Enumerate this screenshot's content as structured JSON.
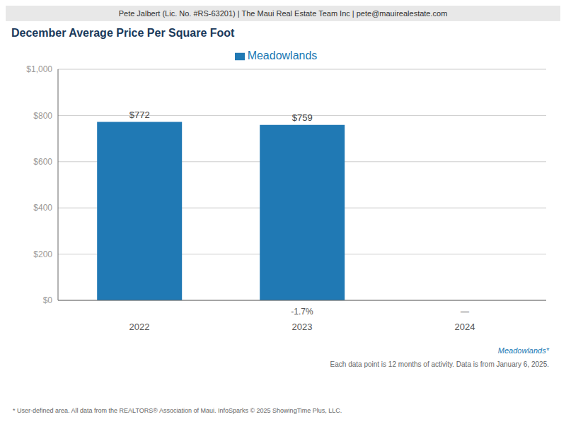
{
  "chart_data": {
    "type": "bar",
    "title": "December Average Price Per Square Foot",
    "header": "Pete Jalbert (Lic. No. #RS-63201) | The Maui Real Estate Team Inc | pete@mauirealestate.com",
    "categories": [
      "2022",
      "2023",
      "2024"
    ],
    "series": [
      {
        "name": "Meadowlands",
        "color": "#2079b4",
        "values": [
          772,
          759,
          0
        ],
        "value_labels": [
          "$772",
          "$759",
          null
        ]
      }
    ],
    "data_labels": true,
    "annotations": [
      null,
      "-1.7%",
      "—"
    ],
    "ylim": [
      0,
      1000
    ],
    "yticks": [
      {
        "value": 0,
        "label": "$0"
      },
      {
        "value": 200,
        "label": "$200"
      },
      {
        "value": 400,
        "label": "$400"
      },
      {
        "value": 600,
        "label": "$600"
      },
      {
        "value": 800,
        "label": "$800"
      },
      {
        "value": 1000,
        "label": "$1,000"
      }
    ],
    "grid": true,
    "legend": "top",
    "footer": [
      "Meadowlands*",
      "Each data point is 12 months of activity. Data is from January 6, 2025.",
      "* User-defined area. All data from the REALTORS® Association of Maui. InfoSparks © 2025 ShowingTime Plus, LLC."
    ]
  }
}
